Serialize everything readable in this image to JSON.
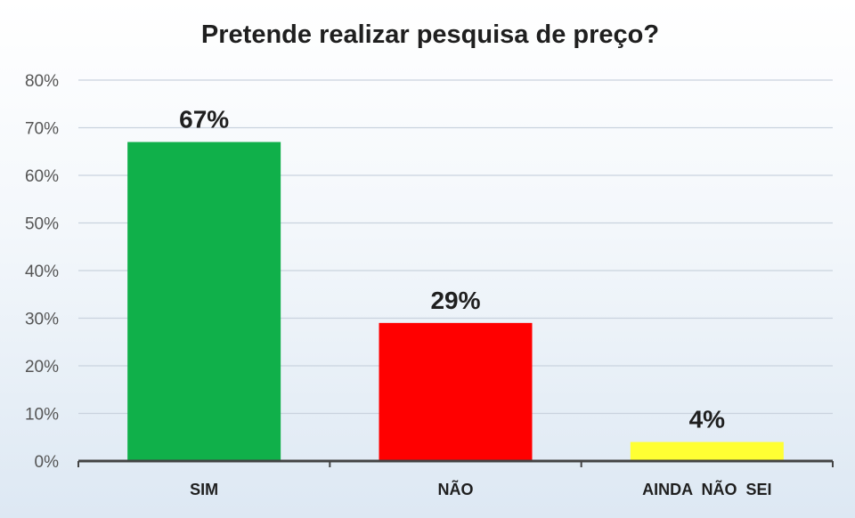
{
  "chart_data": {
    "type": "bar",
    "title": "Pretende realizar pesquisa de preço?",
    "categories": [
      "SIM",
      "NÃO",
      "AINDA  NÃO  SEI"
    ],
    "values": [
      67,
      29,
      4
    ],
    "data_labels": [
      "67%",
      "29%",
      "4%"
    ],
    "bar_colors": [
      "#10b04a",
      "#ff0000",
      "#ffff33"
    ],
    "ylim": [
      0,
      80
    ],
    "yticks": [
      "0%",
      "10%",
      "20%",
      "30%",
      "40%",
      "50%",
      "60%",
      "70%",
      "80%"
    ],
    "grid": true,
    "legend": "none"
  }
}
